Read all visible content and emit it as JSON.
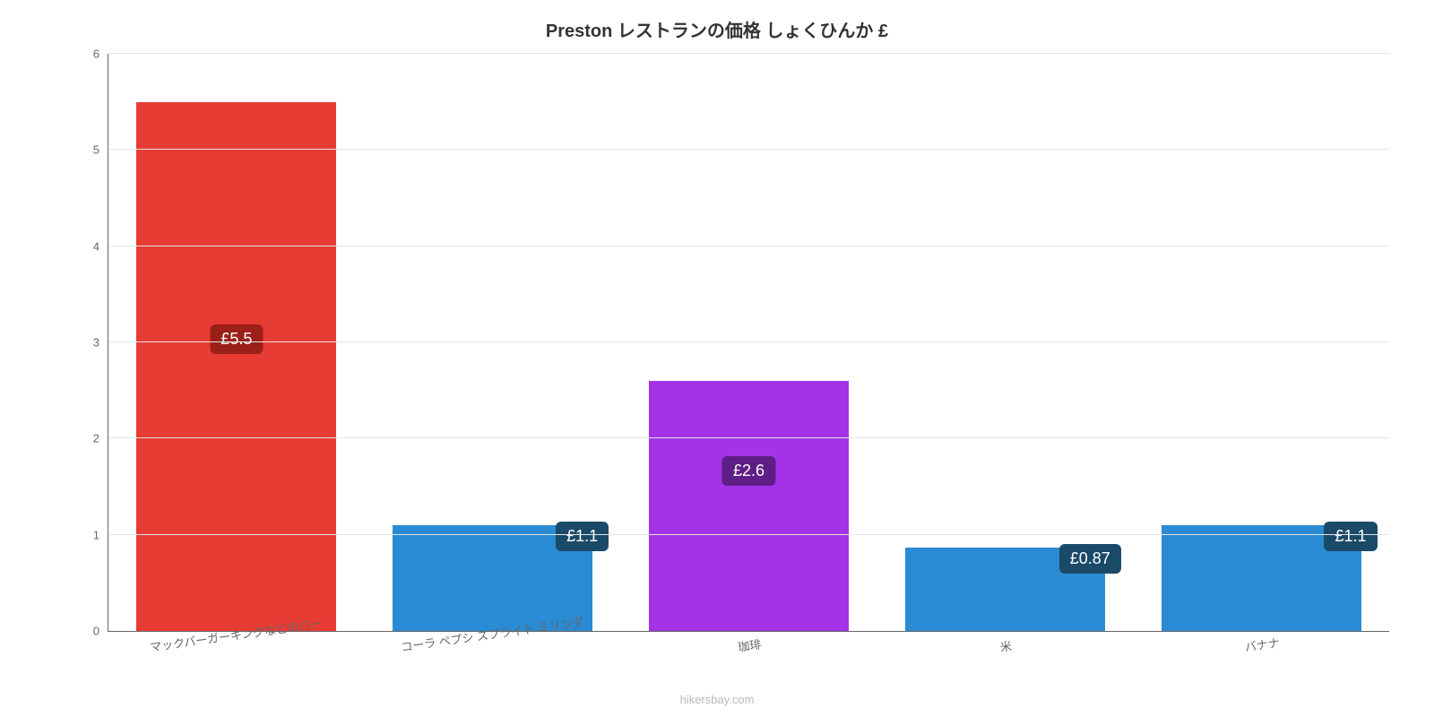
{
  "chart": {
    "type": "bar",
    "title": "Preston レストランの価格 しょくひんか £",
    "title_fontsize": 20,
    "title_color": "#333333",
    "background_color": "#ffffff",
    "grid_color": "#e5e5e5",
    "axis_color": "#666666",
    "ylim": [
      0,
      6
    ],
    "ytick_step": 1,
    "yticks": [
      0,
      1,
      2,
      3,
      4,
      5,
      6
    ],
    "bar_width": 0.78,
    "label_fontsize": 13,
    "label_color": "#666666",
    "xlabel_rotation_deg": -8,
    "categories": [
      "マックバーガーキングなどのバー",
      "コーラ ペプシ スプライト ミリンダ",
      "珈琲",
      "米",
      "バナナ"
    ],
    "values": [
      5.5,
      1.1,
      2.6,
      0.87,
      1.1
    ],
    "value_labels": [
      "£5.5",
      "£1.1",
      "£2.6",
      "£0.87",
      "£1.1"
    ],
    "bar_colors": [
      "#e73c33",
      "#2a8bd4",
      "#a233e7",
      "#2a8bd4",
      "#2a8bd4"
    ],
    "badge_colors": [
      "#9b201a",
      "#1b4a68",
      "#5f1e85",
      "#1b4a68",
      "#1b4a68"
    ],
    "badge_fontsize": 18,
    "badge_text_color": "#ffffff",
    "attribution": "hikersbay.com",
    "attribution_color": "#b9b9b9"
  }
}
